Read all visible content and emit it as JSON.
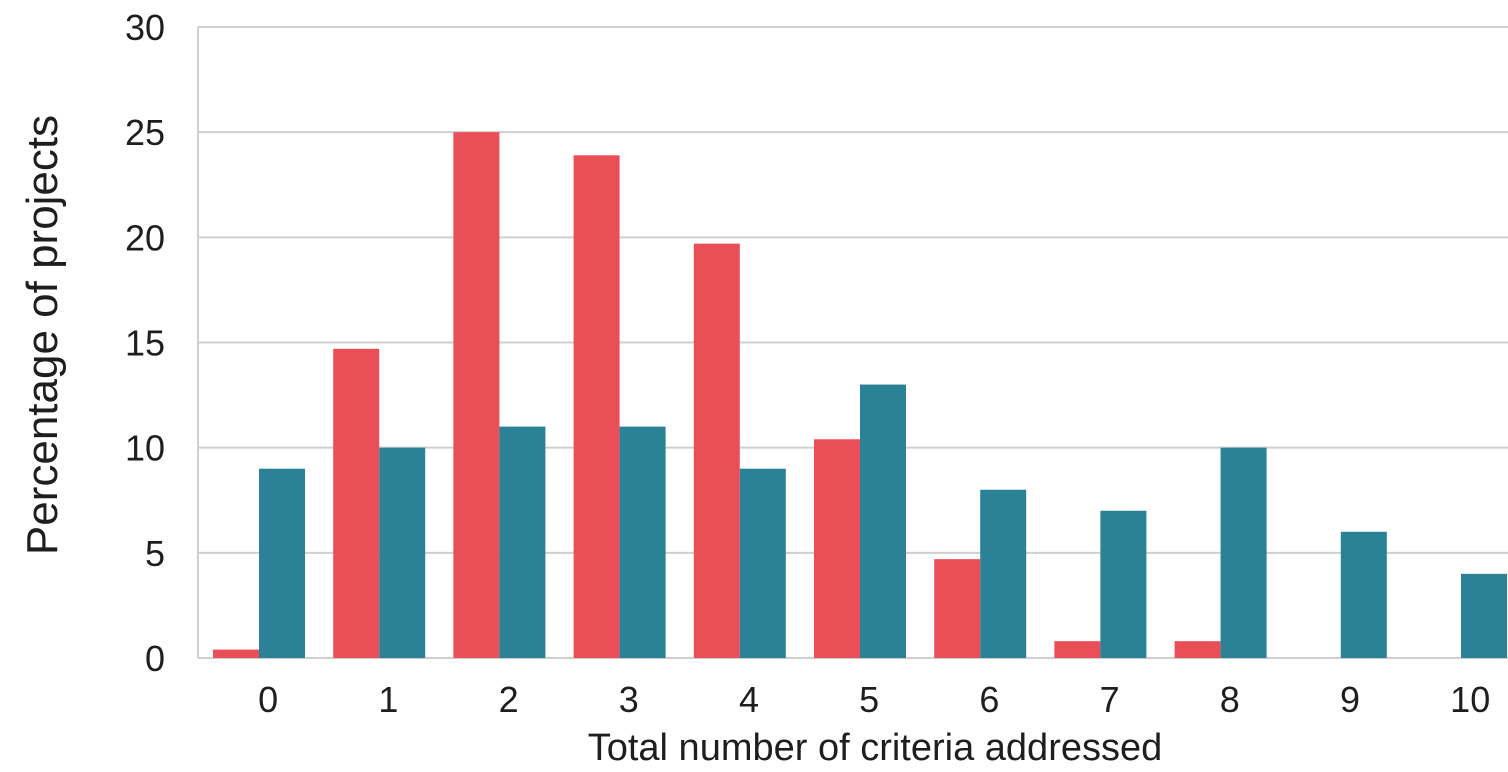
{
  "chart_data": {
    "type": "bar",
    "title": "",
    "xlabel": "Total number of criteria addressed",
    "ylabel": "Percentage of projects",
    "categories": [
      "0",
      "1",
      "2",
      "3",
      "4",
      "5",
      "6",
      "7",
      "8",
      "9",
      "10"
    ],
    "ylim": [
      0,
      30
    ],
    "yticks": [
      0,
      5,
      10,
      15,
      20,
      25,
      30
    ],
    "grid": true,
    "legend": "none",
    "series": [
      {
        "color": "#ea4f57",
        "values": [
          0.4,
          14.7,
          25,
          23.9,
          19.7,
          10.4,
          4.7,
          0.8,
          0.8,
          0,
          0
        ]
      },
      {
        "color": "#2b8297",
        "values": [
          9,
          10,
          11,
          11,
          9,
          13,
          8,
          7,
          10,
          6,
          4
        ]
      }
    ],
    "gridline_color": "#cfcfcf"
  }
}
